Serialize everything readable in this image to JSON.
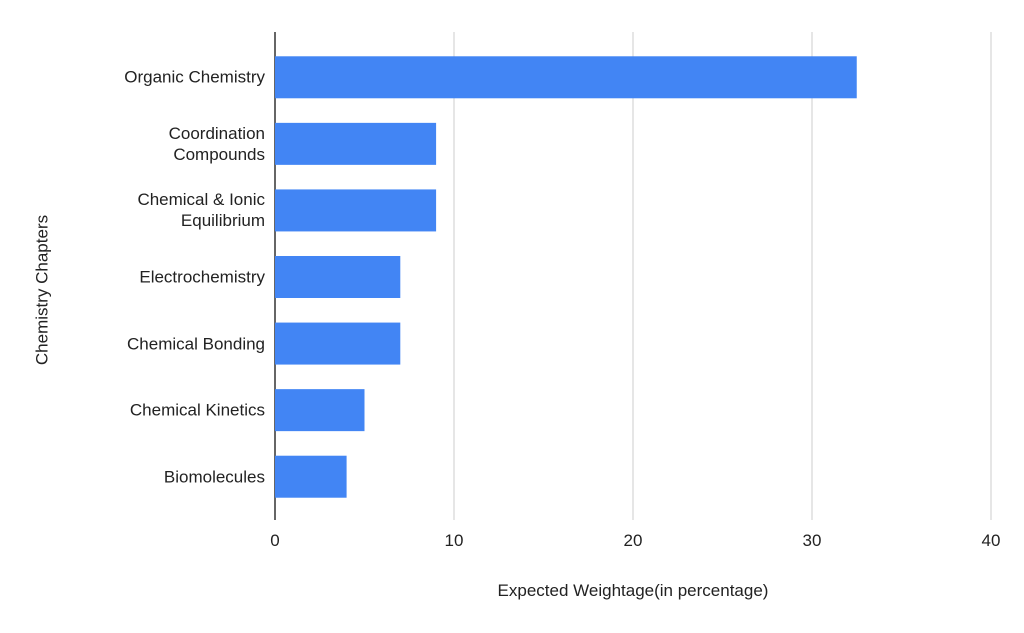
{
  "chart_data": {
    "type": "bar",
    "orientation": "horizontal",
    "x_label": "Expected Weightage(in percentage)",
    "y_label": "Chemistry Chapters",
    "categories": [
      "Organic Chemistry",
      "Coordination\nCompounds",
      "Chemical & Ionic\nEquilibrium",
      "Electrochemistry",
      "Chemical Bonding",
      "Chemical Kinetics",
      "Biomolecules"
    ],
    "values": [
      32.5,
      9,
      9,
      7,
      7,
      5,
      4
    ],
    "color": "#4285f4",
    "xlim": [
      0,
      40
    ],
    "xticks": [
      0,
      10,
      20,
      30,
      40
    ],
    "grid": true
  }
}
